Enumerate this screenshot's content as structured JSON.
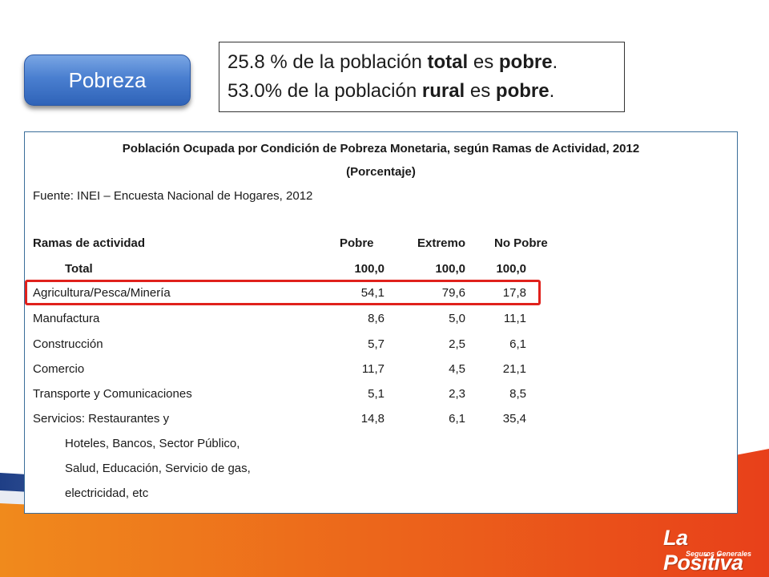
{
  "badge": "Pobreza",
  "headline": {
    "line1": {
      "pre": "25.8 % de la población ",
      "b1": "total",
      "mid": " es ",
      "b2": "pobre",
      "post": "."
    },
    "line2": {
      "pre": "53.0%  de la población ",
      "b1": "rural",
      "mid": " es ",
      "b2": "pobre",
      "post": "."
    }
  },
  "table": {
    "title": "Población Ocupada por Condición de Pobreza Monetaria, según Ramas de Actividad, 2012",
    "subtitle": "(Porcentaje)",
    "source": "Fuente: INEI – Encuesta Nacional de Hogares, 2012",
    "headers": [
      "Ramas de actividad",
      "Pobre",
      "Extremo",
      "No Pobre"
    ],
    "rows": [
      [
        "Total",
        "100,0",
        "100,0",
        "100,0"
      ],
      [
        "Agricultura/Pesca/Minería",
        "54,1",
        "79,6",
        "17,8"
      ],
      [
        "Manufactura",
        "8,6",
        "5,0",
        "11,1"
      ],
      [
        "Construcción",
        "5,7",
        "2,5",
        "6,1"
      ],
      [
        "Comercio",
        "11,7",
        "4,5",
        "21,1"
      ],
      [
        "Transporte y Comunicaciones",
        "5,1",
        "2,3",
        "8,5"
      ],
      [
        "Servicios: Restaurantes y",
        "14,8",
        "6,1",
        "35,4"
      ]
    ],
    "continuation": [
      "Hoteles, Bancos, Sector Público,",
      "Salud, Educación, Servicio de gas,",
      "electricidad, etc"
    ]
  },
  "logo": {
    "name": "La Positiva",
    "tagline": "Seguros Generales"
  },
  "colors": {
    "accent": "#e8401a",
    "badge": "#4a7fd0",
    "highlight": "#e0211c",
    "panel_border": "#3b6e9a"
  }
}
